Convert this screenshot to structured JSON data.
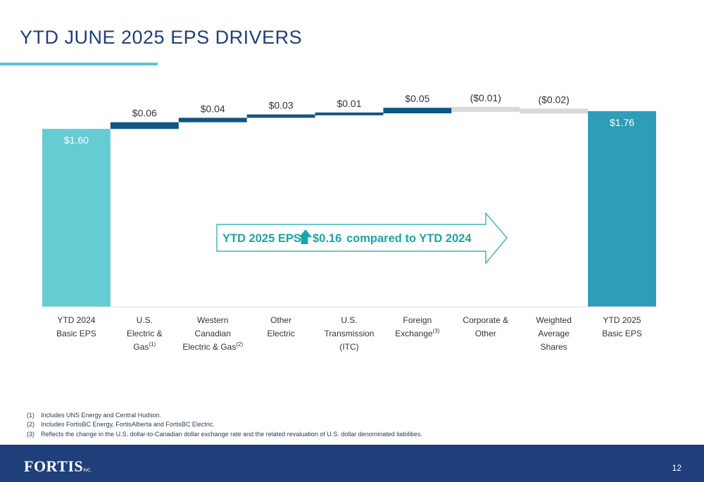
{
  "page": {
    "title": "YTD JUNE 2025 EPS DRIVERS",
    "page_number": "12",
    "logo_text": "FORTIS",
    "logo_suffix": "INC.",
    "footnotes": [
      {
        "num": "(1)",
        "text": "Includes UNS Energy and Central Hudson."
      },
      {
        "num": "(2)",
        "text": "Includes FortisBC Energy, FortisAlberta and FortisBC Electric."
      },
      {
        "num": "(3)",
        "text": "Reflects the change in the U.S. dollar-to-Canadian dollar exchange rate and the related revaluation of U.S. dollar denominated liabilities."
      }
    ]
  },
  "chart_data": {
    "type": "bar",
    "subtype": "waterfall",
    "title": "",
    "ylim": [
      0,
      1.8
    ],
    "grid": false,
    "categories": [
      {
        "lines": [
          "YTD 2024",
          "Basic EPS"
        ],
        "sup": ""
      },
      {
        "lines": [
          "U.S.",
          "Electric &",
          "Gas"
        ],
        "sup": "(1)"
      },
      {
        "lines": [
          "Western",
          "Canadian",
          "Electric & Gas"
        ],
        "sup": "(2)"
      },
      {
        "lines": [
          "Other",
          "Electric"
        ],
        "sup": ""
      },
      {
        "lines": [
          "U.S.",
          "Transmission",
          "(ITC)"
        ],
        "sup": ""
      },
      {
        "lines": [
          "Foreign",
          "Exchange"
        ],
        "sup": "(3)"
      },
      {
        "lines": [
          "Corporate &",
          "Other"
        ],
        "sup": ""
      },
      {
        "lines": [
          "Weighted",
          "Average",
          "Shares"
        ],
        "sup": ""
      },
      {
        "lines": [
          "YTD 2025",
          "Basic EPS"
        ],
        "sup": ""
      }
    ],
    "values": [
      1.6,
      0.06,
      0.04,
      0.03,
      0.01,
      0.05,
      -0.01,
      -0.02,
      1.76
    ],
    "kinds": [
      "total",
      "delta",
      "delta",
      "delta",
      "delta",
      "delta",
      "delta",
      "delta",
      "total"
    ],
    "labels": [
      "$1.60",
      "$0.06",
      "$0.04",
      "$0.03",
      "$0.01",
      "$0.05",
      "($0.01)",
      "($0.02)",
      "$1.76"
    ],
    "colors": {
      "start_total": "#66ccd4",
      "end_total": "#2e9db8",
      "increase": "#0f5585",
      "decrease": "#d9d9d9",
      "label": "#333333",
      "arrow": "#1aa6a8"
    },
    "annotation": {
      "prefix": "YTD 2025 EPS",
      "value": "$0.16",
      "suffix": "compared to YTD 2024"
    }
  }
}
